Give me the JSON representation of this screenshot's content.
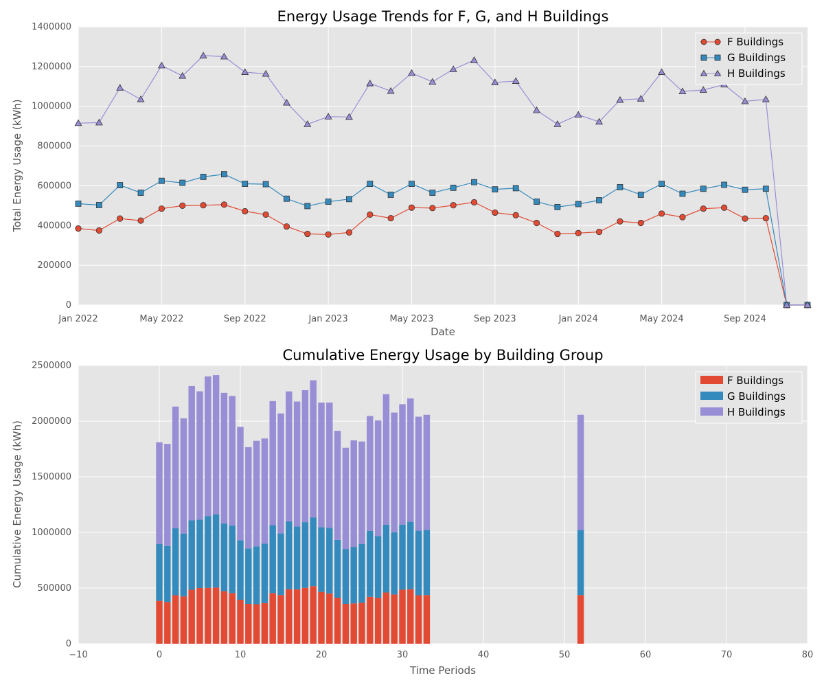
{
  "colors": {
    "f": "#e24a33",
    "g": "#348abd",
    "h": "#988ed5",
    "panel": "#e5e5e5",
    "grid": "#ffffff"
  },
  "chart_data": [
    {
      "type": "line",
      "title": "Energy Usage Trends for F, G, and H Buildings",
      "xlabel": "Date",
      "ylabel": "Total Energy Usage (kWh)",
      "xlim": [
        "2022-01",
        "2024-12"
      ],
      "ylim": [
        0,
        1400000
      ],
      "xticks": [
        "Jan 2022",
        "May 2022",
        "Sep 2022",
        "Jan 2023",
        "May 2023",
        "Sep 2023",
        "Jan 2024",
        "May 2024",
        "Sep 2024"
      ],
      "yticks": [
        "0",
        "200000",
        "400000",
        "600000",
        "800000",
        "1000000",
        "1200000",
        "1400000"
      ],
      "grid": true,
      "legend": "top-right",
      "x": [
        "2022-01",
        "2022-02",
        "2022-03",
        "2022-04",
        "2022-05",
        "2022-06",
        "2022-07",
        "2022-08",
        "2022-09",
        "2022-10",
        "2022-11",
        "2022-12",
        "2023-01",
        "2023-02",
        "2023-03",
        "2023-04",
        "2023-05",
        "2023-06",
        "2023-07",
        "2023-08",
        "2023-09",
        "2023-10",
        "2023-11",
        "2023-12",
        "2024-01",
        "2024-02",
        "2024-03",
        "2024-04",
        "2024-05",
        "2024-06",
        "2024-07",
        "2024-08",
        "2024-09",
        "2024-10",
        "2024-11",
        "2024-12"
      ],
      "series": [
        {
          "name": "F Buildings",
          "marker": "circle",
          "values": [
            385000,
            375000,
            435000,
            425000,
            485000,
            500000,
            502000,
            505000,
            472000,
            455000,
            395000,
            358000,
            355000,
            365000,
            455000,
            437000,
            490000,
            488000,
            502000,
            517000,
            465000,
            452000,
            413000,
            358000,
            362000,
            368000,
            421000,
            413000,
            460000,
            442000,
            485000,
            490000,
            435000,
            437000,
            0,
            0
          ]
        },
        {
          "name": "G Buildings",
          "marker": "square",
          "values": [
            510000,
            503000,
            603000,
            565000,
            625000,
            615000,
            645000,
            658000,
            610000,
            608000,
            535000,
            498000,
            520000,
            533000,
            610000,
            555000,
            610000,
            565000,
            590000,
            618000,
            582000,
            588000,
            520000,
            493000,
            508000,
            527000,
            593000,
            555000,
            610000,
            560000,
            585000,
            605000,
            580000,
            585000,
            0,
            0
          ]
        },
        {
          "name": "H Buildings",
          "marker": "triangle",
          "values": [
            915000,
            918000,
            1093000,
            1035000,
            1205000,
            1153000,
            1255000,
            1250000,
            1172000,
            1163000,
            1018000,
            910000,
            948000,
            946000,
            1115000,
            1077000,
            1167000,
            1123000,
            1186000,
            1232000,
            1120000,
            1127000,
            980000,
            910000,
            957000,
            922000,
            1032000,
            1038000,
            1172000,
            1075000,
            1082000,
            1109000,
            1025000,
            1035000,
            0,
            0
          ]
        }
      ]
    },
    {
      "type": "bar",
      "stacked": true,
      "title": "Cumulative Energy Usage by Building Group",
      "xlabel": "Time Periods",
      "ylabel": "Cumulative Energy Usage (kWh)",
      "xlim": [
        -10,
        80
      ],
      "ylim": [
        0,
        2500000
      ],
      "xticks": [
        "−10",
        "0",
        "10",
        "20",
        "30",
        "40",
        "50",
        "60",
        "70",
        "80"
      ],
      "yticks": [
        "0",
        "500000",
        "1000000",
        "1500000",
        "2000000",
        "2500000"
      ],
      "grid": true,
      "legend": "top-right",
      "x": [
        0,
        1,
        2,
        3,
        4,
        5,
        6,
        7,
        8,
        9,
        10,
        11,
        12,
        13,
        14,
        15,
        16,
        17,
        18,
        19,
        20,
        21,
        22,
        23,
        24,
        25,
        26,
        27,
        28,
        29,
        30,
        31,
        32,
        33,
        52
      ],
      "series": [
        {
          "name": "F Buildings",
          "values": [
            385000,
            375000,
            435000,
            425000,
            485000,
            500000,
            502000,
            505000,
            472000,
            455000,
            395000,
            358000,
            355000,
            365000,
            455000,
            437000,
            490000,
            488000,
            502000,
            517000,
            465000,
            452000,
            413000,
            358000,
            362000,
            368000,
            421000,
            413000,
            460000,
            442000,
            485000,
            490000,
            435000,
            437000,
            437000
          ]
        },
        {
          "name": "G Buildings",
          "values": [
            510000,
            503000,
            603000,
            565000,
            625000,
            615000,
            645000,
            658000,
            610000,
            608000,
            535000,
            498000,
            520000,
            533000,
            610000,
            555000,
            610000,
            565000,
            590000,
            618000,
            582000,
            588000,
            520000,
            493000,
            508000,
            527000,
            593000,
            555000,
            610000,
            560000,
            585000,
            605000,
            580000,
            585000,
            585000
          ]
        },
        {
          "name": "H Buildings",
          "values": [
            915000,
            918000,
            1093000,
            1035000,
            1205000,
            1153000,
            1255000,
            1250000,
            1172000,
            1163000,
            1018000,
            910000,
            948000,
            946000,
            1115000,
            1077000,
            1167000,
            1123000,
            1186000,
            1232000,
            1120000,
            1127000,
            980000,
            910000,
            957000,
            922000,
            1032000,
            1038000,
            1172000,
            1075000,
            1082000,
            1109000,
            1025000,
            1035000,
            1035000
          ]
        }
      ]
    }
  ]
}
